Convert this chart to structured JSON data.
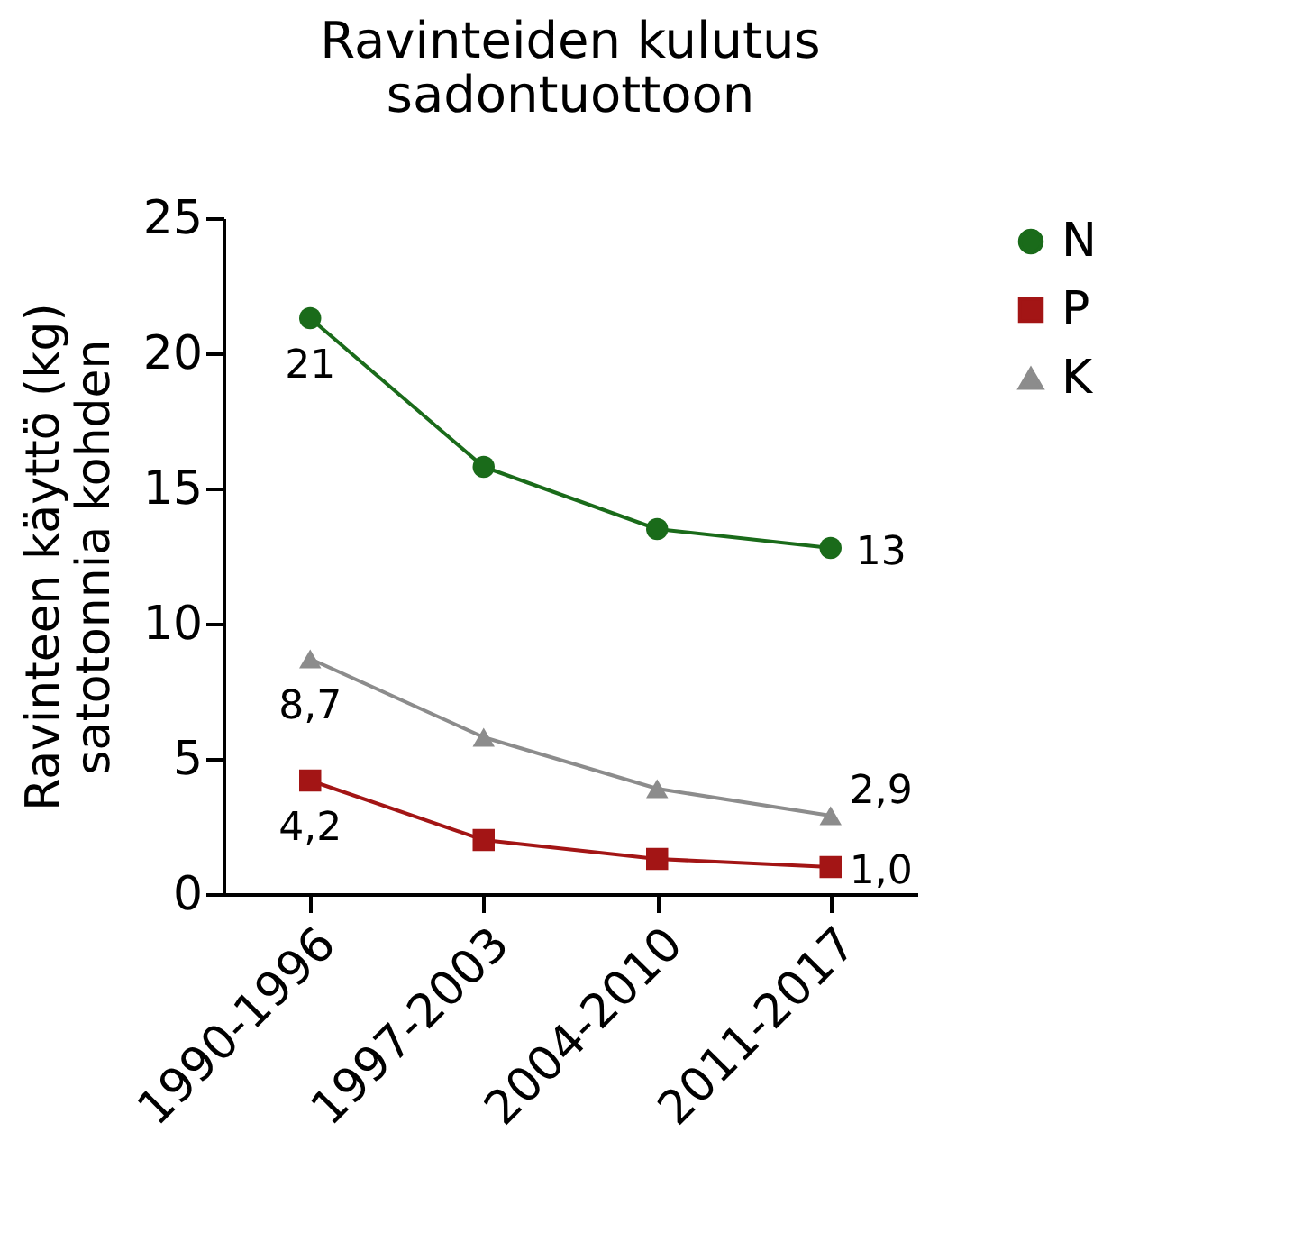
{
  "chart_data": {
    "type": "line",
    "title": [
      "Ravinteiden kulutus",
      "sadontuottoon"
    ],
    "ylabel": [
      "Ravinteen käyttö (kg)",
      "satotonnia kohden"
    ],
    "categories": [
      "1990-1996",
      "1997-2003",
      "2004-2010",
      "2011-2017"
    ],
    "series": [
      {
        "name": "N",
        "color": "#1a6b1a",
        "marker": "circle",
        "values": [
          21.3,
          15.8,
          13.5,
          12.8
        ],
        "value_labels": [
          "21",
          null,
          null,
          "13"
        ]
      },
      {
        "name": "P",
        "color": "#a31515",
        "marker": "square",
        "values": [
          4.2,
          2.0,
          1.3,
          1.0
        ],
        "value_labels": [
          "4,2",
          null,
          null,
          "1,0"
        ]
      },
      {
        "name": "K",
        "color": "#8c8c8c",
        "marker": "triangle",
        "values": [
          8.7,
          5.8,
          3.9,
          2.9
        ],
        "value_labels": [
          "8,7",
          null,
          null,
          "2,9"
        ]
      }
    ],
    "ylim": [
      0,
      25
    ],
    "yticks": [
      0,
      5,
      10,
      15,
      20,
      25
    ],
    "grid": false,
    "legend": "top right"
  }
}
